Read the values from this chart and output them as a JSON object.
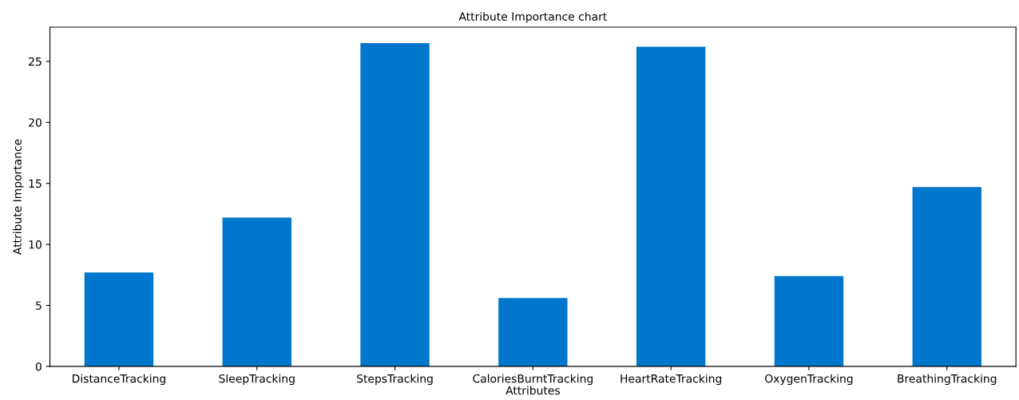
{
  "chart_data": {
    "type": "bar",
    "title": "Attribute Importance chart",
    "xlabel": "Attributes",
    "ylabel": "Attribute Importance",
    "categories": [
      "DistanceTracking",
      "SleepTracking",
      "StepsTracking",
      "CaloriesBurntTracking",
      "HeartRateTracking",
      "OxygenTracking",
      "BreathingTracking"
    ],
    "values": [
      7.7,
      12.2,
      26.5,
      5.6,
      26.2,
      7.4,
      14.7
    ],
    "color": "#0077cc",
    "ylim": [
      0,
      27.8
    ],
    "yticks": [
      0,
      5,
      10,
      15,
      20,
      25
    ],
    "grid": false
  }
}
